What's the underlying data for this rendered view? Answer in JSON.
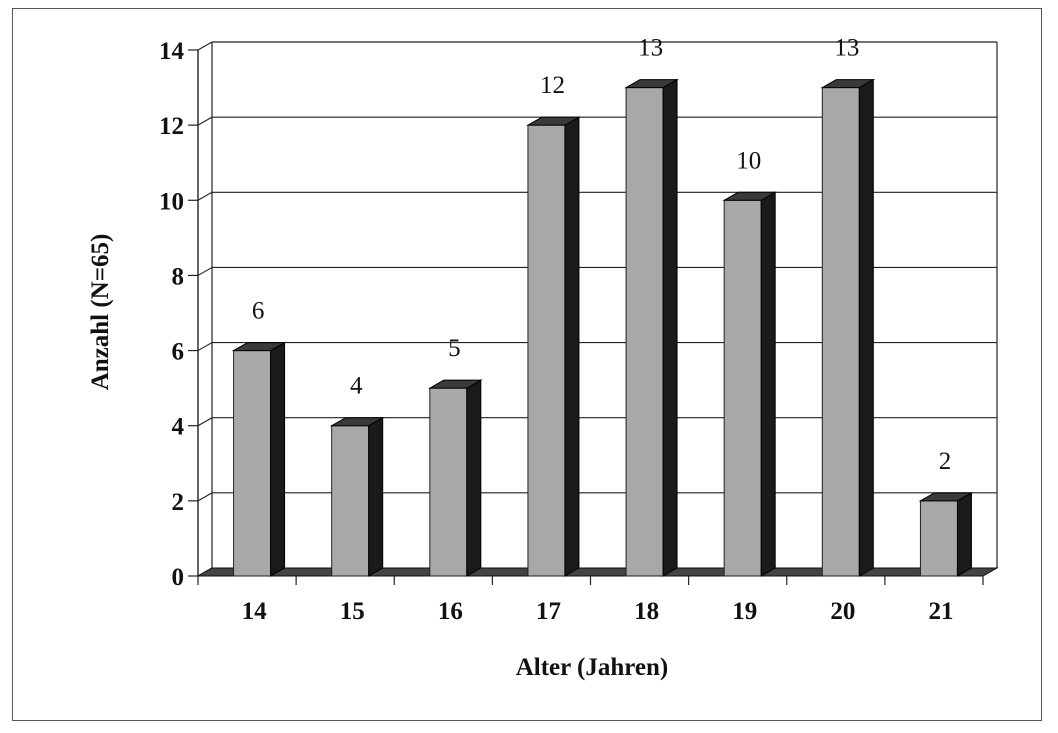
{
  "chart_data": {
    "type": "bar",
    "categories": [
      "14",
      "15",
      "16",
      "17",
      "18",
      "19",
      "20",
      "21"
    ],
    "values": [
      6,
      4,
      5,
      12,
      13,
      10,
      13,
      2
    ],
    "data_labels": [
      "6",
      "4",
      "5",
      "12",
      "13",
      "10",
      "13",
      "2"
    ],
    "xlabel": "Alter (Jahren)",
    "ylabel": "Anzahl (N=65)",
    "ylim": [
      0,
      14
    ],
    "yticks": [
      "0",
      "2",
      "4",
      "6",
      "8",
      "10",
      "12",
      "14"
    ],
    "grid": true,
    "style": "3d-bar",
    "colors": {
      "bar_front": "#a8a8a8",
      "bar_side": "#1a1a1a",
      "bar_top": "#3a3a3a",
      "grid": "#222222",
      "floor": "#444444"
    }
  }
}
